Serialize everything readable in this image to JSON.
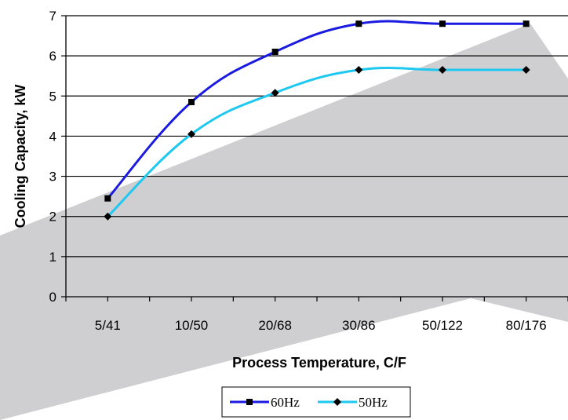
{
  "chart_data": {
    "type": "line",
    "title": "",
    "xlabel": "Process Temperature, C/F",
    "ylabel": "Cooling Capacity, kW",
    "categories": [
      "5/41",
      "10/50",
      "20/68",
      "30/86",
      "50/122",
      "80/176"
    ],
    "ylim": [
      0,
      7
    ],
    "yticks": [
      0,
      1,
      2,
      3,
      4,
      5,
      6,
      7
    ],
    "grid": "horizontal",
    "legend_position": "bottom",
    "series": [
      {
        "name": "60Hz",
        "values": [
          2.45,
          4.85,
          6.1,
          6.8,
          6.8,
          6.8
        ],
        "color": "#1a1ae0",
        "marker": "square"
      },
      {
        "name": "50Hz",
        "values": [
          2.0,
          4.05,
          5.08,
          5.65,
          5.65,
          5.65
        ],
        "color": "#1ec8f0",
        "marker": "diamond"
      }
    ]
  }
}
